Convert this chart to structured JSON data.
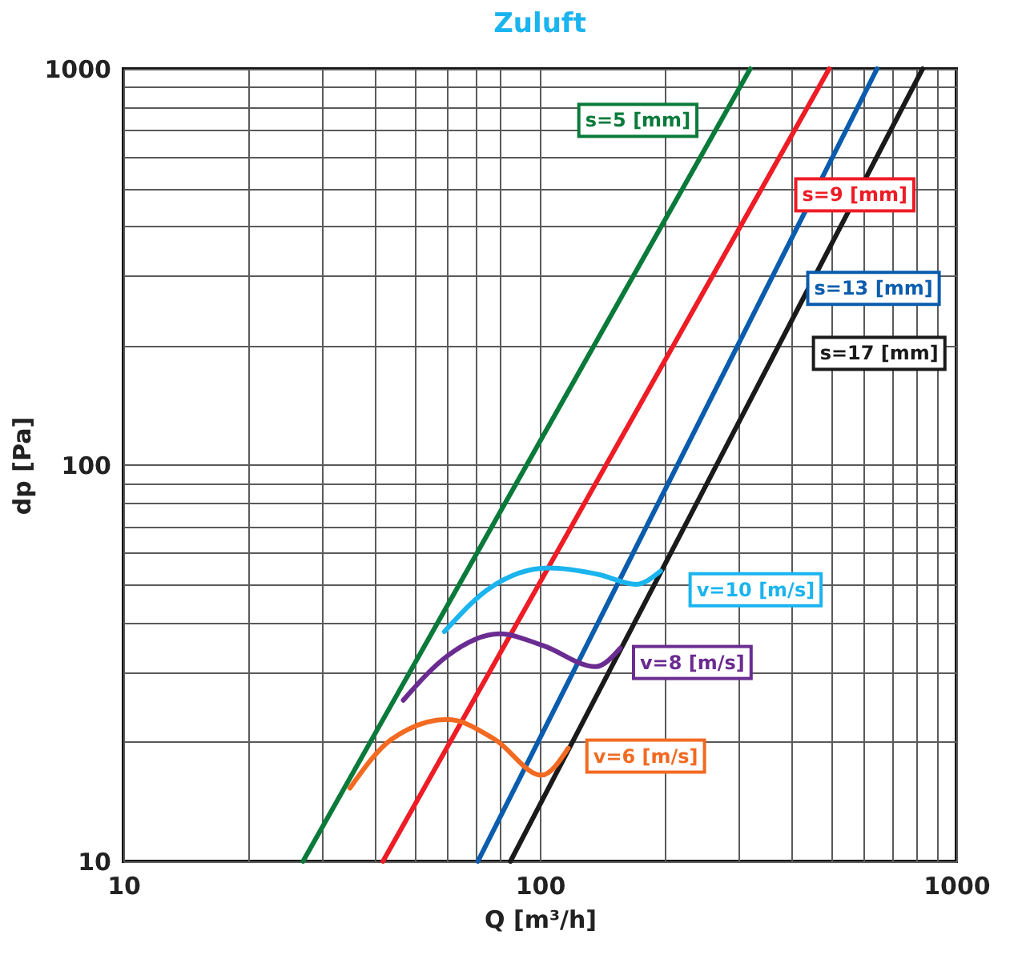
{
  "chart_data": {
    "type": "line",
    "title": "Zuluft",
    "xlabel": "Q [m³/h]",
    "ylabel": "dp [Pa]",
    "log": "xy",
    "grid": true,
    "legend": false,
    "marker": "none",
    "line_style": "solid",
    "xlim": [
      10,
      1000
    ],
    "ylim": [
      10,
      1000
    ],
    "xticks": [
      10,
      {
        "value": 20,
        "label": null
      },
      {
        "value": 30,
        "label": null
      },
      {
        "value": 40,
        "label": null
      },
      {
        "value": 50,
        "label": null
      },
      {
        "value": 60,
        "label": null
      },
      {
        "value": 70,
        "label": null
      },
      {
        "value": 80,
        "label": null
      },
      100,
      {
        "value": 200,
        "label": null
      },
      {
        "value": 300,
        "label": null
      },
      {
        "value": 400,
        "label": null
      },
      {
        "value": 500,
        "label": null
      },
      {
        "value": 600,
        "label": null
      },
      {
        "value": 700,
        "label": null
      },
      {
        "value": 800,
        "label": null
      },
      {
        "value": 900,
        "label": null
      },
      1000
    ],
    "yticks": [
      10,
      {
        "value": 20,
        "label": null
      },
      {
        "value": 30,
        "label": null
      },
      {
        "value": 40,
        "label": null
      },
      {
        "value": 50,
        "label": null
      },
      {
        "value": 60,
        "label": null
      },
      {
        "value": 70,
        "label": null
      },
      {
        "value": 80,
        "label": null
      },
      {
        "value": 90,
        "label": null
      },
      100,
      {
        "value": 200,
        "label": null
      },
      {
        "value": 300,
        "label": null
      },
      {
        "value": 400,
        "label": null
      },
      {
        "value": 500,
        "label": null
      },
      {
        "value": 600,
        "label": null
      },
      {
        "value": 700,
        "label": null
      },
      {
        "value": 800,
        "label": null
      },
      {
        "value": 900,
        "label": null
      },
      1000
    ],
    "series": [
      {
        "name": "s=5 [mm]",
        "color": "#0a7a3a",
        "x": [
          27,
          320
        ],
        "values": [
          10,
          1000
        ]
      },
      {
        "name": "s=9 [mm]",
        "color": "#ee1c25",
        "x": [
          42,
          495
        ],
        "values": [
          10,
          1000
        ]
      },
      {
        "name": "s=13 [mm]",
        "color": "#0a5cad",
        "x": [
          71,
          645
        ],
        "values": [
          10,
          1000
        ]
      },
      {
        "name": "s=17 [mm]",
        "color": "#1a1a1a",
        "x": [
          85,
          830
        ],
        "values": [
          10,
          1000
        ]
      },
      {
        "name": "v=10 [m/s]",
        "color": "#1ab4ee",
        "x": [
          59,
          76,
          105,
          138,
          170,
          195
        ],
        "values": [
          38,
          49,
          55,
          53,
          50,
          54
        ]
      },
      {
        "name": "v=8 [m/s]",
        "color": "#6a2c91",
        "x": [
          47,
          60,
          80,
          102,
          136,
          156
        ],
        "values": [
          25.5,
          33,
          37.5,
          35,
          31,
          34.5
        ]
      },
      {
        "name": "v=6 [m/s]",
        "color": "#f26a22",
        "x": [
          35,
          44,
          60,
          78,
          101,
          117
        ],
        "values": [
          15.3,
          20.3,
          22.8,
          20.3,
          16.5,
          19.3
        ]
      }
    ]
  }
}
